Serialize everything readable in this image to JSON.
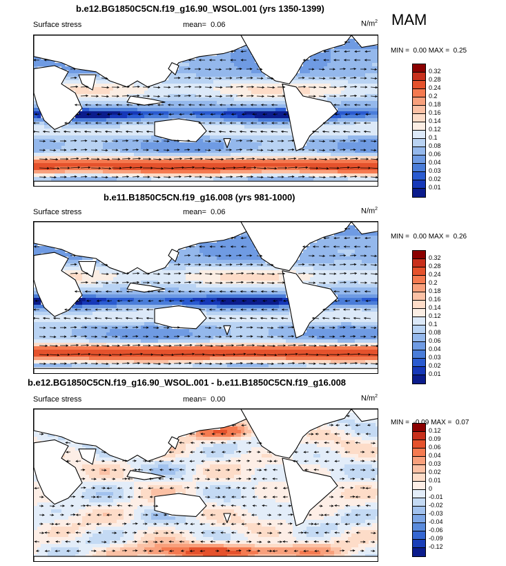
{
  "season": "MAM",
  "units_base": "N/m",
  "units_sup": "2",
  "panels": [
    {
      "title": "b.e12.BG1850C5CN.f19_g16.90_WSOL.001 (yrs 1350-1399)",
      "left_label": "Surface stress",
      "mean_label": "mean=",
      "mean_value": "0.06",
      "min_label": "MIN =",
      "min_value": "0.00",
      "max_label": "MAX =",
      "max_value": "0.25",
      "colorbar": {
        "levels": [
          "0.32",
          "0.28",
          "0.24",
          "0.2",
          "0.18",
          "0.16",
          "0.14",
          "0.12",
          "0.1",
          "0.08",
          "0.06",
          "0.04",
          "0.03",
          "0.02",
          "0.01"
        ],
        "colors": [
          "#8b0000",
          "#c8301c",
          "#e5522c",
          "#f47a50",
          "#f8a07c",
          "#fbc1a5",
          "#fddcc8",
          "#fbeee4",
          "#dce9f8",
          "#b9d3f3",
          "#94b8ec",
          "#6f9be3",
          "#4a7dd9",
          "#2a5bd0",
          "#1638b8",
          "#0b1c8c"
        ]
      }
    },
    {
      "title": "b.e11.B1850C5CN.f19_g16.008 (yrs 981-1000)",
      "left_label": "Surface stress",
      "mean_label": "mean=",
      "mean_value": "0.06",
      "min_label": "MIN =",
      "min_value": "0.00",
      "max_label": "MAX =",
      "max_value": "0.26",
      "colorbar": {
        "levels": [
          "0.32",
          "0.28",
          "0.24",
          "0.2",
          "0.18",
          "0.16",
          "0.14",
          "0.12",
          "0.1",
          "0.08",
          "0.06",
          "0.04",
          "0.03",
          "0.02",
          "0.01"
        ],
        "colors": [
          "#8b0000",
          "#c8301c",
          "#e5522c",
          "#f47a50",
          "#f8a07c",
          "#fbc1a5",
          "#fddcc8",
          "#fbeee4",
          "#dce9f8",
          "#b9d3f3",
          "#94b8ec",
          "#6f9be3",
          "#4a7dd9",
          "#2a5bd0",
          "#1638b8",
          "#0b1c8c"
        ]
      }
    },
    {
      "title": "b.e12.BG1850C5CN.f19_g16.90_WSOL.001 - b.e11.B1850C5CN.f19_g16.008",
      "left_label": "Surface stress",
      "mean_label": "mean=",
      "mean_value": "0.00",
      "min_label": "MIN =",
      "min_value": "-0.09",
      "max_label": "MAX =",
      "max_value": "0.07",
      "colorbar": {
        "levels": [
          "0.12",
          "0.09",
          "0.06",
          "0.04",
          "0.03",
          "0.02",
          "0.01",
          "0",
          "-0.01",
          "-0.02",
          "-0.03",
          "-0.04",
          "-0.06",
          "-0.09",
          "-0.12"
        ],
        "colors": [
          "#8b0000",
          "#c8301c",
          "#e5522c",
          "#f47a50",
          "#f8a07c",
          "#fbc1a5",
          "#fddcc8",
          "#fdeee6",
          "#e3edf9",
          "#c4daf4",
          "#a2c2ee",
          "#7ea7e6",
          "#5a8bdc",
          "#3567d2",
          "#1a3fb8",
          "#0b1c8c"
        ]
      }
    }
  ],
  "chart_data": [
    {
      "type": "heatmap",
      "title": "b.e12.BG1850C5CN.f19_g16.90_WSOL.001 (yrs 1350-1399)",
      "variable": "Surface stress",
      "units": "N/m2",
      "season": "MAM",
      "mean": 0.06,
      "min": 0.0,
      "max": 0.25,
      "contour_levels": [
        0.01,
        0.02,
        0.03,
        0.04,
        0.06,
        0.08,
        0.1,
        0.12,
        0.14,
        0.16,
        0.18,
        0.2,
        0.24,
        0.28,
        0.32
      ]
    },
    {
      "type": "heatmap",
      "title": "b.e11.B1850C5CN.f19_g16.008 (yrs 981-1000)",
      "variable": "Surface stress",
      "units": "N/m2",
      "season": "MAM",
      "mean": 0.06,
      "min": 0.0,
      "max": 0.26,
      "contour_levels": [
        0.01,
        0.02,
        0.03,
        0.04,
        0.06,
        0.08,
        0.1,
        0.12,
        0.14,
        0.16,
        0.18,
        0.2,
        0.24,
        0.28,
        0.32
      ]
    },
    {
      "type": "heatmap",
      "title": "b.e12.BG1850C5CN.f19_g16.90_WSOL.001 - b.e11.B1850C5CN.f19_g16.008",
      "variable": "Surface stress",
      "units": "N/m2",
      "season": "MAM",
      "mean": 0.0,
      "min": -0.09,
      "max": 0.07,
      "contour_levels": [
        -0.12,
        -0.09,
        -0.06,
        -0.04,
        -0.03,
        -0.02,
        -0.01,
        0,
        0.01,
        0.02,
        0.03,
        0.04,
        0.06,
        0.09,
        0.12
      ]
    }
  ]
}
